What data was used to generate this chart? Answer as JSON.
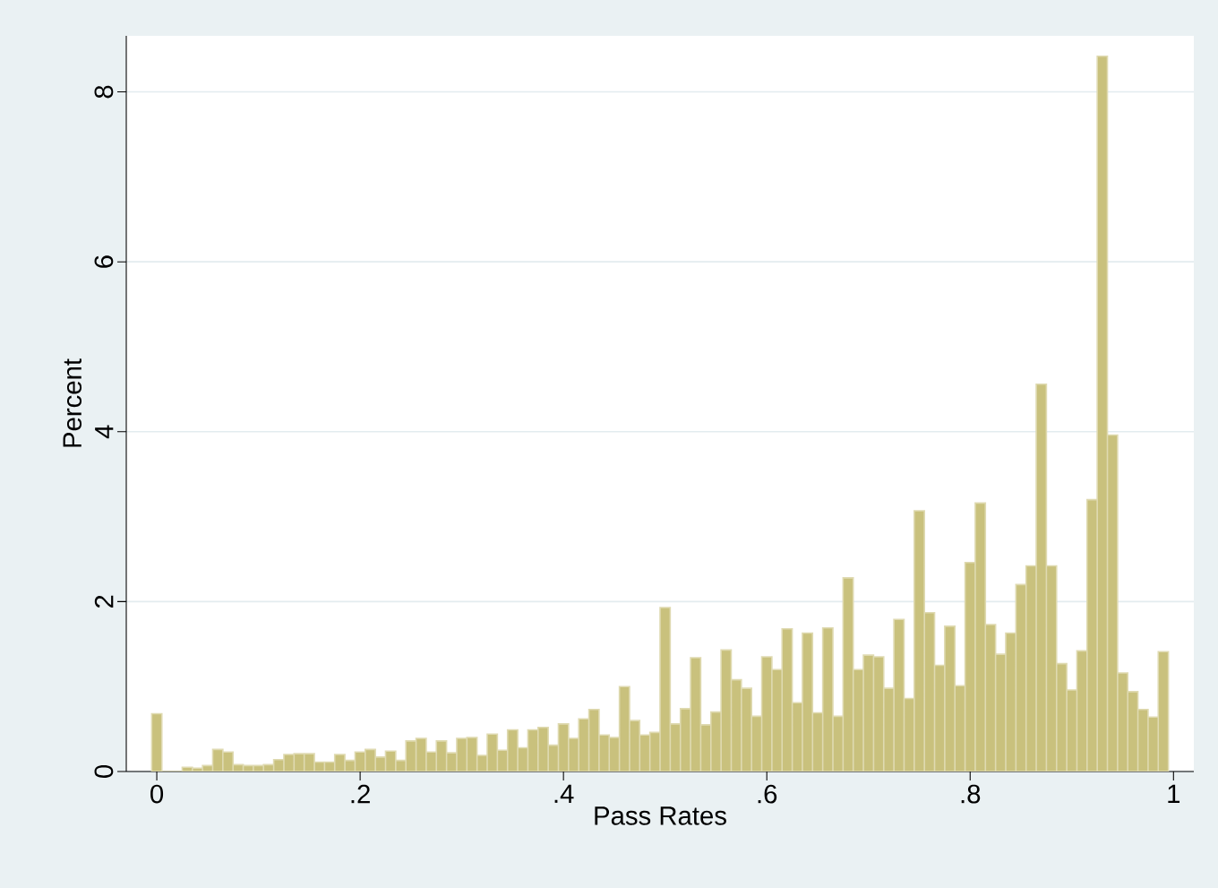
{
  "chart_data": {
    "type": "histogram",
    "xlabel": "Pass Rates",
    "ylabel": "Percent",
    "bins": [
      -0.005,
      0.005,
      0.015,
      0.025,
      0.035,
      0.045,
      0.055,
      0.065,
      0.075,
      0.085,
      0.095,
      0.105,
      0.115,
      0.125,
      0.135,
      0.145,
      0.155,
      0.165,
      0.175,
      0.185,
      0.195,
      0.205,
      0.215,
      0.225,
      0.235,
      0.245,
      0.255,
      0.265,
      0.275,
      0.285,
      0.295,
      0.305,
      0.315,
      0.325,
      0.335,
      0.345,
      0.355,
      0.365,
      0.375,
      0.385,
      0.395,
      0.405,
      0.415,
      0.425,
      0.435,
      0.445,
      0.455,
      0.465,
      0.475,
      0.485,
      0.495,
      0.505,
      0.515,
      0.525,
      0.535,
      0.545,
      0.555,
      0.565,
      0.575,
      0.585,
      0.595,
      0.605,
      0.615,
      0.625,
      0.635,
      0.645,
      0.655,
      0.665,
      0.675,
      0.685,
      0.695,
      0.705,
      0.715,
      0.725,
      0.735,
      0.745,
      0.755,
      0.765,
      0.775,
      0.785,
      0.795,
      0.805,
      0.815,
      0.825,
      0.835,
      0.845,
      0.855,
      0.865,
      0.875,
      0.885,
      0.895,
      0.905,
      0.915,
      0.925,
      0.935,
      0.945,
      0.955,
      0.965,
      0.975,
      0.985,
      0.995
    ],
    "values": [
      0.68,
      0,
      0,
      0.05,
      0.04,
      0.07,
      0.26,
      0.23,
      0.08,
      0.07,
      0.07,
      0.08,
      0.14,
      0.2,
      0.21,
      0.21,
      0.11,
      0.11,
      0.2,
      0.13,
      0.23,
      0.26,
      0.17,
      0.24,
      0.13,
      0.36,
      0.39,
      0.23,
      0.36,
      0.22,
      0.39,
      0.4,
      0.19,
      0.44,
      0.25,
      0.49,
      0.28,
      0.49,
      0.52,
      0.31,
      0.56,
      0.39,
      0.62,
      0.73,
      0.43,
      0.4,
      1.0,
      0.6,
      0.43,
      0.46,
      1.93,
      0.56,
      0.74,
      1.34,
      0.55,
      0.7,
      1.43,
      1.08,
      0.98,
      0.65,
      1.35,
      1.2,
      1.68,
      0.81,
      1.63,
      0.69,
      1.69,
      0.65,
      2.28,
      1.2,
      1.37,
      1.35,
      0.98,
      1.79,
      0.86,
      3.07,
      1.87,
      1.25,
      1.71,
      1.01,
      2.46,
      3.16,
      1.73,
      1.38,
      1.63,
      2.2,
      2.42,
      4.56,
      2.42,
      1.27,
      0.96,
      1.42,
      3.2,
      8.42,
      3.96,
      1.16,
      0.94,
      0.73,
      0.64,
      1.41
    ],
    "color": "#c9c17d",
    "xlim": [
      -0.03,
      1.02
    ],
    "ylim": [
      0,
      8.66
    ],
    "xticks": [
      0,
      {
        "value": 0.2,
        "label": ".2"
      },
      {
        "value": 0.4,
        "label": ".4"
      },
      {
        "value": 0.6,
        "label": ".6"
      },
      {
        "value": 0.8,
        "label": ".8"
      },
      1
    ],
    "yticks": [
      0,
      2,
      4,
      6,
      8
    ],
    "grid": "y"
  }
}
